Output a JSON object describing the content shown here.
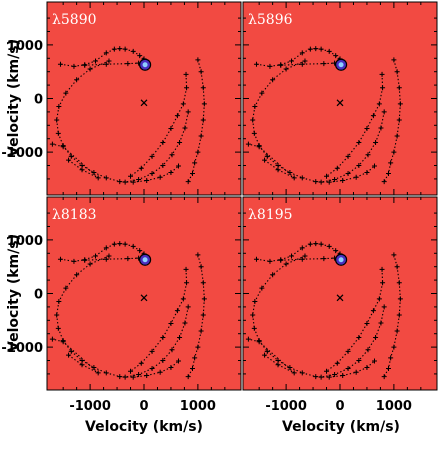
{
  "chart_data": {
    "type": "scatter",
    "layout": "2x2 grid, shared axes",
    "xlabel": "Velocity (km/s)",
    "ylabel": "Velocity (km/s)",
    "xlim": [
      -1800,
      1800
    ],
    "ylim": [
      -1800,
      1800
    ],
    "xticks": [
      -1000,
      0,
      1000
    ],
    "xtick_labels": [
      "-1000",
      "0",
      "1000"
    ],
    "yticks": [
      1000,
      0,
      -1000
    ],
    "ytick_labels": [
      "1000",
      "0",
      "-1000"
    ],
    "background_color": "#f24a42",
    "marker_color": "#000000",
    "panels": [
      {
        "label": "λ5890"
      },
      {
        "label": "λ5896"
      },
      {
        "label": "λ8183"
      },
      {
        "label": "λ8195"
      }
    ],
    "center_marker": {
      "x": 0,
      "y": -80
    },
    "highlight": {
      "x": 20,
      "y": 630,
      "colors": [
        "#4b2fbf",
        "#8ed0ff"
      ]
    },
    "series": [
      {
        "values": [
          {
            "x": -1550,
            "y": 640
          },
          {
            "x": -1300,
            "y": 600
          },
          {
            "x": -1100,
            "y": 630
          },
          {
            "x": -900,
            "y": 700
          },
          {
            "x": -700,
            "y": 850
          },
          {
            "x": -550,
            "y": 920
          },
          {
            "x": -450,
            "y": 930
          },
          {
            "x": -350,
            "y": 920
          },
          {
            "x": -200,
            "y": 880
          },
          {
            "x": -80,
            "y": 800
          },
          {
            "x": 0,
            "y": 740
          }
        ]
      },
      {
        "values": [
          {
            "x": -1100,
            "y": 620
          },
          {
            "x": -700,
            "y": 640
          },
          {
            "x": -300,
            "y": 650
          },
          {
            "x": -100,
            "y": 660
          },
          {
            "x": 0,
            "y": 680
          }
        ]
      },
      {
        "values": [
          {
            "x": 1000,
            "y": 720
          },
          {
            "x": 1060,
            "y": 500
          },
          {
            "x": 1100,
            "y": 200
          },
          {
            "x": 1120,
            "y": -100
          },
          {
            "x": 1100,
            "y": -400
          },
          {
            "x": 1060,
            "y": -700
          },
          {
            "x": 1000,
            "y": -1000
          },
          {
            "x": 940,
            "y": -1200
          },
          {
            "x": 900,
            "y": -1400
          },
          {
            "x": 820,
            "y": -1550
          }
        ]
      },
      {
        "values": [
          {
            "x": 780,
            "y": 450
          },
          {
            "x": 790,
            "y": 200
          },
          {
            "x": 730,
            "y": -100
          },
          {
            "x": 620,
            "y": -320
          },
          {
            "x": 500,
            "y": -560
          },
          {
            "x": 350,
            "y": -820
          },
          {
            "x": 150,
            "y": -1080
          },
          {
            "x": -50,
            "y": -1300
          },
          {
            "x": -250,
            "y": -1450
          }
        ]
      },
      {
        "values": [
          {
            "x": 820,
            "y": -250
          },
          {
            "x": 760,
            "y": -550
          },
          {
            "x": 660,
            "y": -820
          },
          {
            "x": 520,
            "y": -1050
          },
          {
            "x": 350,
            "y": -1250
          },
          {
            "x": 150,
            "y": -1400
          },
          {
            "x": -100,
            "y": -1510
          },
          {
            "x": -350,
            "y": -1560
          }
        ]
      },
      {
        "values": [
          {
            "x": -650,
            "y": 700
          },
          {
            "x": -1000,
            "y": 550
          },
          {
            "x": -1250,
            "y": 350
          },
          {
            "x": -1450,
            "y": 100
          },
          {
            "x": -1580,
            "y": -150
          },
          {
            "x": -1620,
            "y": -400
          },
          {
            "x": -1590,
            "y": -650
          },
          {
            "x": -1500,
            "y": -880
          },
          {
            "x": -1350,
            "y": -1080
          },
          {
            "x": -1150,
            "y": -1250
          },
          {
            "x": -930,
            "y": -1380
          },
          {
            "x": -700,
            "y": -1480
          },
          {
            "x": -450,
            "y": -1550
          },
          {
            "x": -200,
            "y": -1560
          },
          {
            "x": 50,
            "y": -1530
          },
          {
            "x": 300,
            "y": -1470
          },
          {
            "x": 500,
            "y": -1380
          },
          {
            "x": 640,
            "y": -1260
          }
        ]
      },
      {
        "values": [
          {
            "x": -1400,
            "y": -1150
          },
          {
            "x": -1150,
            "y": -1330
          },
          {
            "x": -850,
            "y": -1480
          },
          {
            "x": -1500,
            "y": -900
          },
          {
            "x": -1700,
            "y": -850
          }
        ]
      }
    ]
  }
}
